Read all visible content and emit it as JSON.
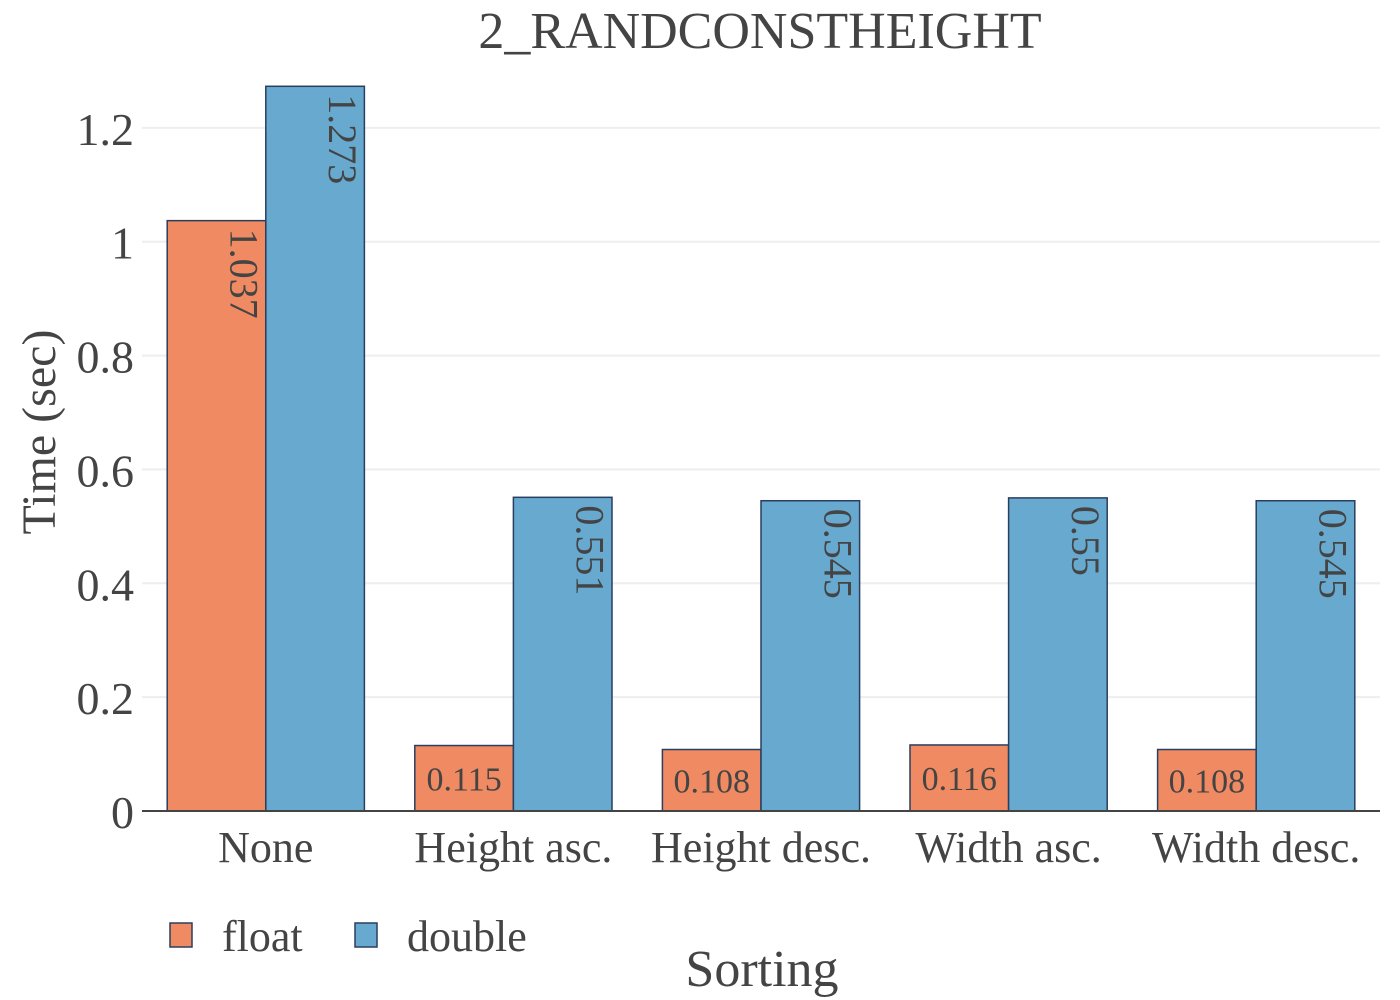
{
  "chart_data": {
    "type": "bar",
    "title": "2_RANDCONSTHEIGHT",
    "xlabel": "Sorting",
    "ylabel": "Time (sec)",
    "ylim": [
      0,
      1.27
    ],
    "yticks": [
      "0",
      "0.2",
      "0.4",
      "0.6",
      "0.8",
      "1",
      "1.2"
    ],
    "ytick_values": [
      0,
      0.2,
      0.4,
      0.6,
      0.8,
      1,
      1.2
    ],
    "categories": [
      "None",
      "Height asc.",
      "Height desc.",
      "Width asc.",
      "Width desc."
    ],
    "grid": true,
    "legend_position": "bottom-left",
    "series": [
      {
        "name": "float",
        "color": "#ef8a62",
        "values": [
          1.037,
          0.115,
          0.108,
          0.116,
          0.108
        ],
        "labels": [
          "1.037",
          "0.115",
          "0.108",
          "0.116",
          "0.108"
        ]
      },
      {
        "name": "double",
        "color": "#67a9cf",
        "values": [
          1.273,
          0.551,
          0.545,
          0.55,
          0.545
        ],
        "labels": [
          "1.273",
          "0.551",
          "0.545",
          "0.55",
          "0.545"
        ]
      }
    ]
  }
}
